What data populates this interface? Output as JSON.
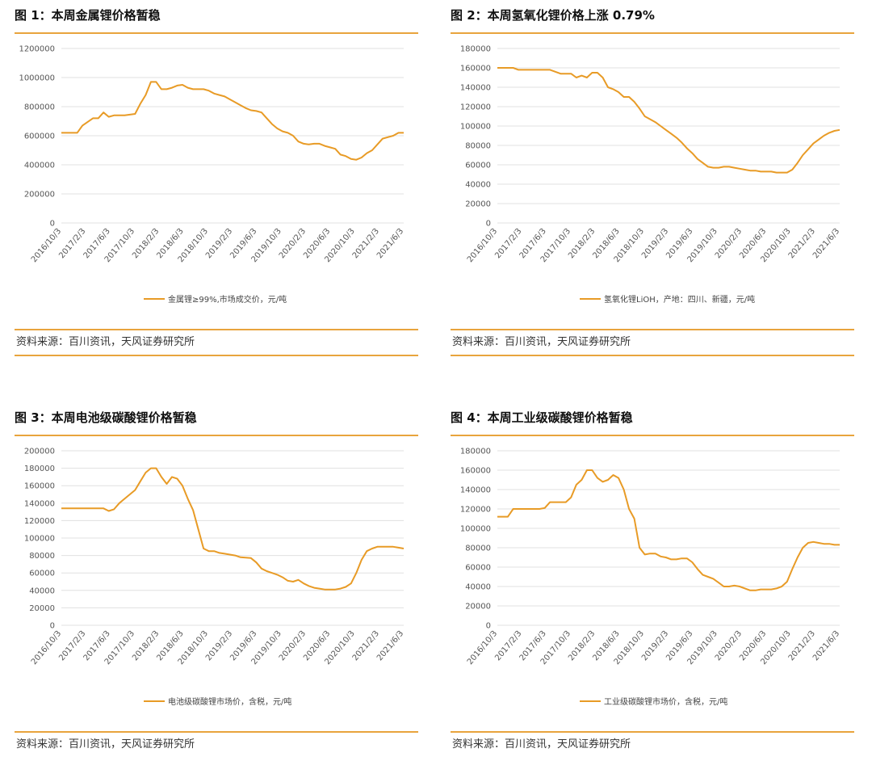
{
  "colors": {
    "accent": "#e8a43d",
    "series": "#e89b26",
    "grid": "#e0e0e0",
    "text": "#333333"
  },
  "source_text": "资料来源：百川资讯，天风证券研究所",
  "x_tick_labels": [
    "2016/10/3",
    "2017/2/3",
    "2017/6/3",
    "2017/10/3",
    "2018/2/3",
    "2018/6/3",
    "2018/10/3",
    "2019/2/3",
    "2019/6/3",
    "2019/10/3",
    "2020/2/3",
    "2020/6/3",
    "2020/10/3",
    "2021/2/3",
    "2021/6/3"
  ],
  "chart_data": [
    {
      "type": "line",
      "title": "图 1：本周金属锂价格暂稳",
      "series_name": "金属锂≥99%,市场成交价，元/吨",
      "ylim": [
        0,
        1200000
      ],
      "yticks": [
        0,
        200000,
        400000,
        600000,
        800000,
        1000000,
        1200000
      ],
      "grid": true,
      "legend": "bottom",
      "x": [
        0,
        3,
        4,
        6,
        7,
        8,
        9,
        10,
        12,
        14,
        15,
        16,
        17,
        18,
        19,
        20,
        21,
        22,
        23,
        24,
        25,
        26,
        27,
        28,
        29,
        30,
        31,
        32,
        33,
        34,
        35,
        36,
        37,
        38,
        39,
        40,
        41,
        42,
        43,
        44,
        45,
        46,
        47,
        48,
        49,
        50,
        51,
        52,
        53,
        54,
        55,
        56,
        57,
        58
      ],
      "values": [
        620000,
        620000,
        670000,
        720000,
        720000,
        760000,
        730000,
        740000,
        740000,
        750000,
        820000,
        880000,
        970000,
        970000,
        920000,
        920000,
        930000,
        945000,
        950000,
        930000,
        920000,
        920000,
        920000,
        910000,
        890000,
        880000,
        870000,
        850000,
        830000,
        810000,
        790000,
        775000,
        770000,
        760000,
        720000,
        680000,
        650000,
        630000,
        620000,
        600000,
        560000,
        545000,
        540000,
        545000,
        545000,
        530000,
        520000,
        510000,
        470000,
        460000,
        440000,
        435000,
        450000,
        480000
      ],
      "x_tail": [
        59,
        60,
        61,
        62,
        63,
        64,
        65
      ],
      "values_tail": [
        500000,
        540000,
        580000,
        590000,
        600000,
        620000,
        620000
      ]
    },
    {
      "type": "line",
      "title": "图 2：本周氢氧化锂价格上涨 0.79%",
      "series_name": "氢氧化锂LiOH，产地：四川、新疆，元/吨",
      "ylim": [
        0,
        180000
      ],
      "yticks": [
        0,
        20000,
        40000,
        60000,
        80000,
        100000,
        120000,
        140000,
        160000,
        180000
      ],
      "grid": true,
      "legend": "bottom",
      "x": [
        0,
        3,
        4,
        8,
        10,
        12,
        14,
        15,
        16,
        17,
        18,
        19,
        20,
        21,
        22,
        23,
        24,
        25,
        26,
        27,
        28,
        29,
        30,
        31,
        32,
        33,
        34,
        35,
        36,
        37,
        38,
        39,
        40,
        41,
        42,
        43,
        44,
        45,
        46,
        47,
        48,
        49,
        50,
        51,
        52,
        53,
        54,
        55,
        56,
        57,
        58,
        59,
        60,
        61,
        62,
        63,
        64,
        65
      ],
      "values": [
        160000,
        160000,
        158000,
        158000,
        158000,
        154000,
        154000,
        150000,
        152000,
        150000,
        155000,
        155000,
        150000,
        140000,
        138000,
        135000,
        130000,
        130000,
        125000,
        118000,
        110000,
        107000,
        104000,
        100000,
        96000,
        92000,
        88000,
        83000,
        77000,
        72000,
        66000,
        62000,
        58000,
        57000,
        57000,
        58000,
        58000,
        57000,
        56000,
        55000,
        54000,
        54000,
        53000,
        53000,
        53000,
        52000,
        52000,
        52000,
        55000,
        62000,
        70000,
        76000,
        82000,
        86000,
        90000,
        93000,
        95000,
        96000
      ]
    },
    {
      "type": "line",
      "title": "图 3：本周电池级碳酸锂价格暂稳",
      "series_name": "电池级碳酸锂市场价，含税，元/吨",
      "ylim": [
        0,
        200000
      ],
      "yticks": [
        0,
        20000,
        40000,
        60000,
        80000,
        100000,
        120000,
        140000,
        160000,
        180000,
        200000
      ],
      "grid": true,
      "legend": "bottom",
      "x": [
        0,
        4,
        8,
        9,
        10,
        11,
        12,
        13,
        14,
        15,
        16,
        17,
        18,
        19,
        20,
        21,
        22,
        23,
        24,
        25,
        26,
        27,
        28,
        29,
        30,
        31,
        32,
        33,
        34,
        36,
        37,
        38,
        39,
        40,
        41,
        42,
        43,
        44,
        45,
        46,
        47,
        48,
        49,
        50,
        51,
        52,
        53,
        54,
        55,
        56,
        57,
        58,
        59,
        60,
        61,
        62,
        63,
        64,
        65
      ],
      "values": [
        134000,
        134000,
        134000,
        131000,
        133000,
        140000,
        145000,
        150000,
        155000,
        165000,
        175000,
        180000,
        180000,
        170000,
        162000,
        170000,
        168000,
        160000,
        145000,
        132000,
        110000,
        88000,
        85000,
        85000,
        83000,
        82000,
        81000,
        80000,
        78000,
        77000,
        72000,
        65000,
        62000,
        60000,
        58000,
        55000,
        51000,
        50000,
        52000,
        48000,
        45000,
        43000,
        42000,
        41000,
        41000,
        41000,
        42000,
        44000,
        48000,
        60000,
        75000,
        85000,
        88000,
        90000,
        90000,
        90000,
        90000,
        89000,
        88000
      ]
    },
    {
      "type": "line",
      "title": "图 4：本周工业级碳酸锂价格暂稳",
      "series_name": "工业级碳酸锂市场价，含税，元/吨",
      "ylim": [
        0,
        180000
      ],
      "yticks": [
        0,
        20000,
        40000,
        60000,
        80000,
        100000,
        120000,
        140000,
        160000,
        180000
      ],
      "grid": true,
      "legend": "bottom",
      "x": [
        0,
        2,
        3,
        8,
        9,
        10,
        13,
        14,
        15,
        16,
        17,
        18,
        19,
        20,
        21,
        22,
        23,
        24,
        25,
        26,
        27,
        28,
        29,
        30,
        31,
        32,
        33,
        34,
        35,
        36,
        37,
        38,
        39,
        40,
        41,
        42,
        43,
        44,
        45,
        46,
        47,
        48,
        49,
        50,
        51,
        52,
        53,
        54,
        55,
        56,
        57,
        58,
        59,
        60,
        61,
        62,
        63,
        64,
        65
      ],
      "values": [
        112000,
        112000,
        120000,
        120000,
        121000,
        127000,
        127000,
        132000,
        145000,
        150000,
        160000,
        160000,
        152000,
        148000,
        150000,
        155000,
        152000,
        140000,
        120000,
        110000,
        80000,
        73000,
        74000,
        74000,
        71000,
        70000,
        68000,
        68000,
        69000,
        69000,
        65000,
        58000,
        52000,
        50000,
        48000,
        44000,
        40000,
        40000,
        41000,
        40000,
        38000,
        36000,
        36000,
        37000,
        37000,
        37000,
        38000,
        40000,
        45000,
        58000,
        70000,
        80000,
        85000,
        86000,
        85000,
        84000,
        84000,
        83000,
        83000
      ]
    }
  ]
}
